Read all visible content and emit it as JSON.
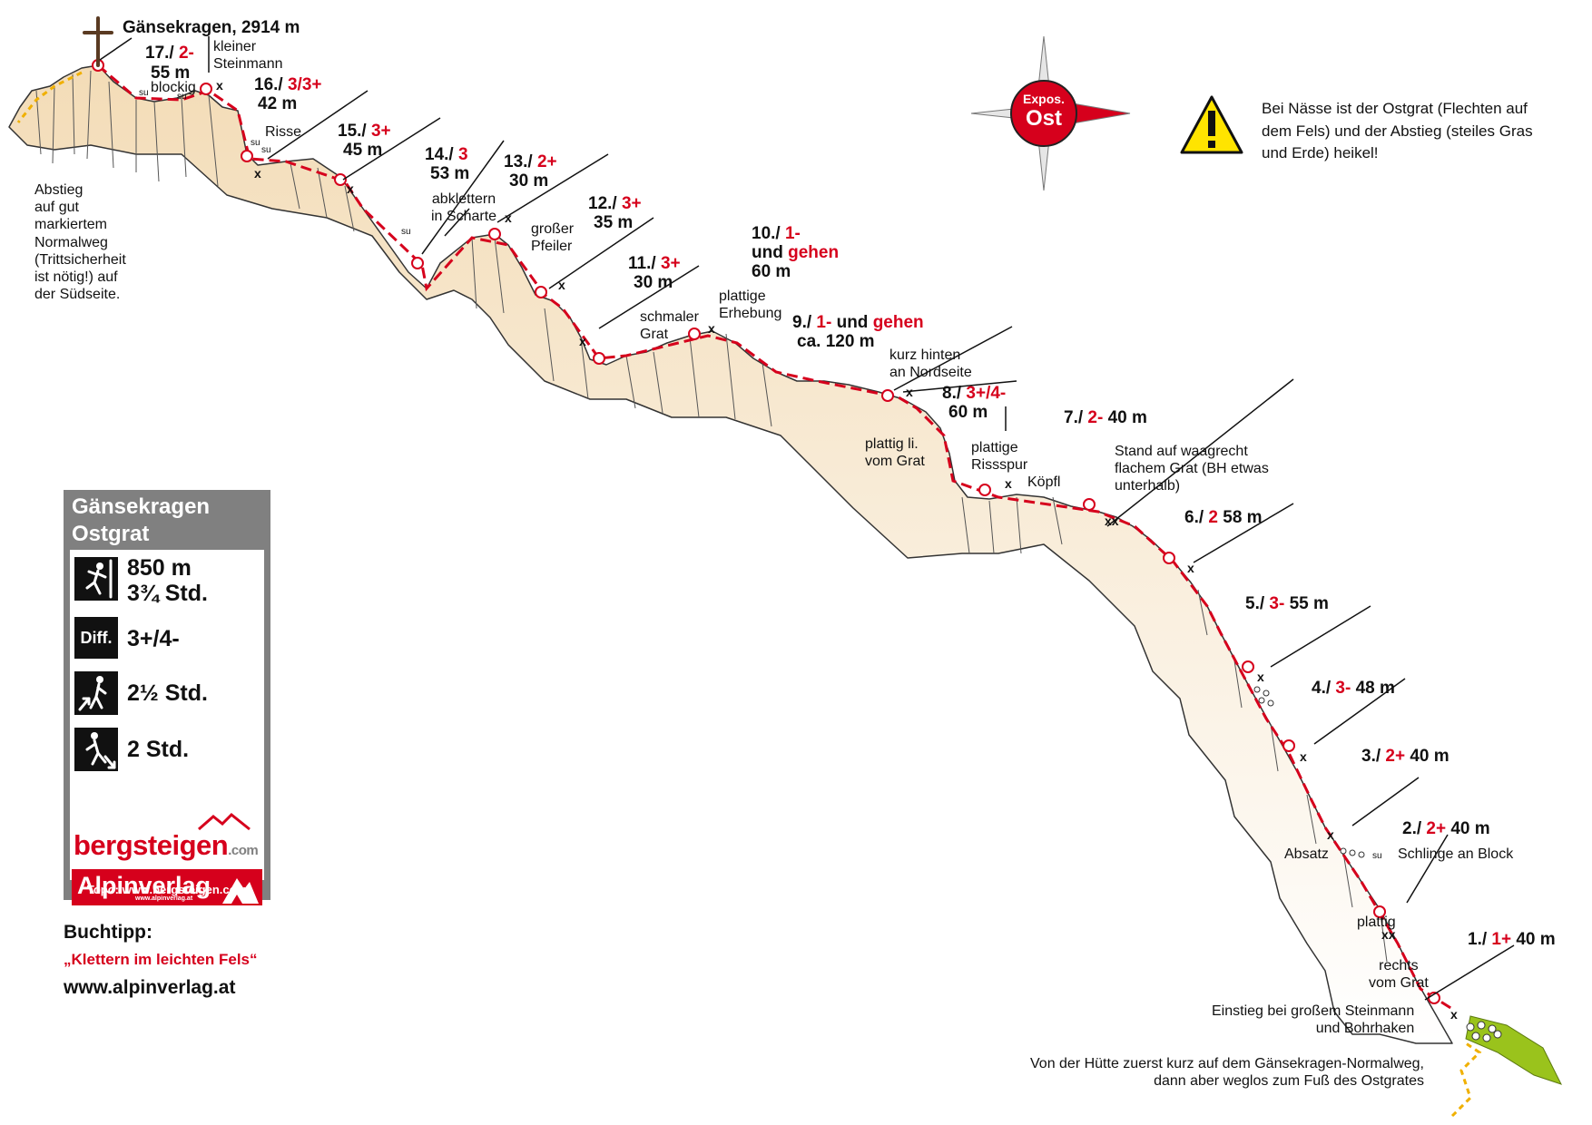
{
  "summit": {
    "name": "Gänsekragen, 2914 m"
  },
  "pitches": [
    {
      "num": "17./",
      "grade": "2-",
      "length": "55 m"
    },
    {
      "num": "16./",
      "grade": "3/3+",
      "length": "42 m"
    },
    {
      "num": "15./",
      "grade": "3+",
      "length": "45 m"
    },
    {
      "num": "14./",
      "grade": "3",
      "length": "53 m"
    },
    {
      "num": "13./",
      "grade": "2+",
      "length": "30 m"
    },
    {
      "num": "12./",
      "grade": "3+",
      "length": "35 m"
    },
    {
      "num": "11./",
      "grade": "3+",
      "length": "30 m"
    },
    {
      "num": "10./",
      "grade": "1-",
      "extra": "und",
      "extra_red": "gehen",
      "length": "60 m"
    },
    {
      "num": "9./",
      "grade": "1-",
      "extra": "und",
      "extra_red": "gehen",
      "length": "ca. 120 m"
    },
    {
      "num": "8./",
      "grade": "3+/4-",
      "length": "60 m"
    },
    {
      "num": "7./",
      "grade": "2-",
      "length": "40 m"
    },
    {
      "num": "6./",
      "grade": "2",
      "length": "58 m"
    },
    {
      "num": "5./",
      "grade": "3-",
      "length": "55 m"
    },
    {
      "num": "4./",
      "grade": "3-",
      "length": "48 m"
    },
    {
      "num": "3./",
      "grade": "2+",
      "length": "40 m"
    },
    {
      "num": "2./",
      "grade": "2+",
      "length": "40 m"
    },
    {
      "num": "1./",
      "grade": "1+",
      "length": "40 m"
    }
  ],
  "annotations": {
    "kleiner_steinmann": "kleiner\nSteinmann",
    "blockig": "blockig",
    "risse": "Risse",
    "abstieg": "Abstieg\nauf gut\nmarkiertem\nNormalweg\n(Trittsicherheit\nist nötig!) auf\nder Südseite.",
    "abklettern": "abklettern\nin Scharte",
    "grosser_pfeiler": "großer\nPfeiler",
    "schmaler_grat": "schmaler\nGrat",
    "plattige_erhebung": "plattige\nErhebung",
    "kurz_hinten": "kurz hinten\nan Nordseite",
    "plattig_li": "plattig li.\nvom Grat",
    "plattige_rissspur": "plattige\nRissspur",
    "koepfl": "Köpfl",
    "stand_auf": "Stand auf waagrecht\nflachem Grat (BH etwas\nunterhalb)",
    "absatz": "Absatz",
    "schlinge": "Schlinge an Block",
    "plattig": "plattig",
    "rechts_vom_grat": "rechts\nvom Grat",
    "einstieg": "Einstieg bei großem Steinmann\nund Bohrhaken",
    "zustieg": "Von der Hütte zuerst kurz auf dem Gänsekragen-Normalweg,\ndann aber weglos zum Fuß des Ostgrates"
  },
  "markers": {
    "x": "x",
    "xx": "xx",
    "su": "su"
  },
  "compass": {
    "label_top": "Expos.",
    "label_main": "Ost"
  },
  "warning": {
    "text": "Bei Nässe ist der Ostgrat (Flechten auf\ndem Fels) und der Abstieg (steiles Gras\nund Erde) heikel!",
    "icon": "warning-triangle-icon"
  },
  "info_panel": {
    "title_line1": "Gänsekragen",
    "title_line2": "Ostgrat",
    "height_diff": "850 m",
    "climb_time": "3¾ Std.",
    "diff_icon_label": "Diff.",
    "difficulty": "3+/4-",
    "approach_time": "2½ Std.",
    "descent_time": "2 Std.",
    "logo1_main": "bergsteigen",
    "logo1_suffix": ".com",
    "logo2_main": "Alpinverlag",
    "logo2_sub": "www.alpinverlag.at",
    "footer": "Topo: www.bergsteigen.com"
  },
  "book": {
    "label": "Buchtipp:",
    "title": "„Klettern im leichten Fels“",
    "url": "www.alpinverlag.at"
  },
  "colors": {
    "route_red": "#d6001c",
    "rock_fill": "#f5e2c2",
    "rock_shade": "#d8b98a",
    "panel_gray": "#808080",
    "warning_yellow": "#ffe400",
    "approach_yellow": "#f0b000",
    "grass_green": "#9ac31c"
  }
}
